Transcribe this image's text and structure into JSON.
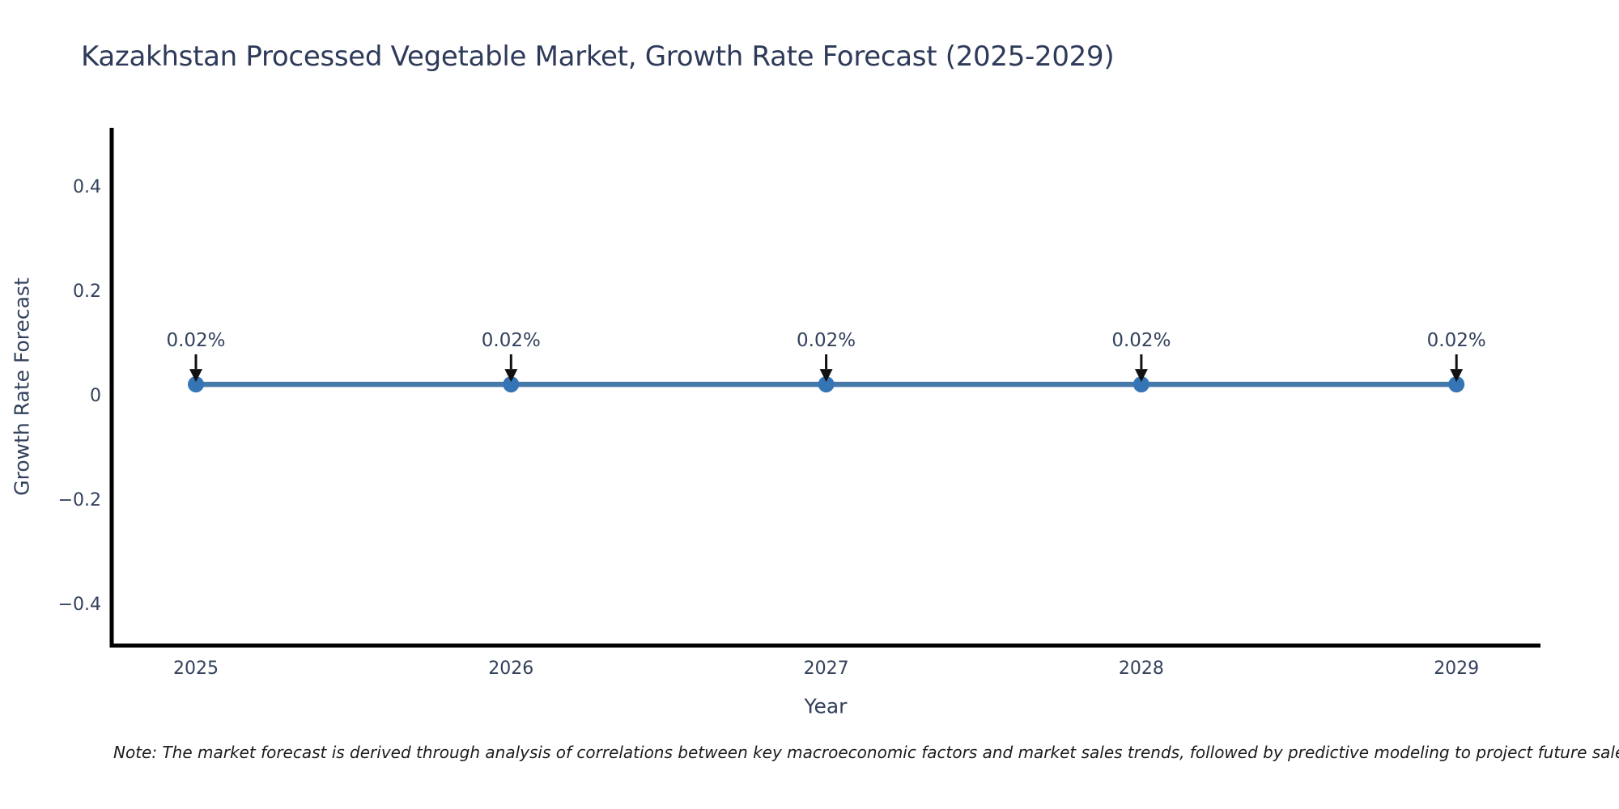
{
  "chart": {
    "title": "Kazakhstan Processed Vegetable Market, Growth Rate Forecast (2025-2029)",
    "xlabel": "Year",
    "ylabel": "Growth Rate Forecast",
    "note": "Note: The market forecast is derived through analysis of correlations between key macroeconomic factors and market sales trends, followed by predictive modeling to project future sales."
  },
  "chart_data": {
    "type": "line",
    "title": "Kazakhstan Processed Vegetable Market, Growth Rate Forecast (2025-2029)",
    "xlabel": "Year",
    "ylabel": "Growth Rate Forecast",
    "categories": [
      "2025",
      "2026",
      "2027",
      "2028",
      "2029"
    ],
    "values": [
      0.02,
      0.02,
      0.02,
      0.02,
      0.02
    ],
    "point_labels": [
      "0.02%",
      "0.02%",
      "0.02%",
      "0.02%",
      "0.02%"
    ],
    "y_ticks": [
      0.4,
      0.2,
      0,
      -0.2,
      -0.4
    ],
    "y_tick_labels": [
      "0.4",
      "0.2",
      "0",
      "−0.2",
      "−0.4"
    ],
    "ylim": [
      -0.49,
      0.51
    ],
    "grid": false,
    "legend_position": "none",
    "annotation_style": "value label with downward black arrow at each point",
    "colors": {
      "line": "#4679aa",
      "marker": "#3575b5",
      "arrow": "#111111",
      "axis": "#000000",
      "tick_text": "#33415c",
      "title_text": "#2e3a59"
    }
  }
}
